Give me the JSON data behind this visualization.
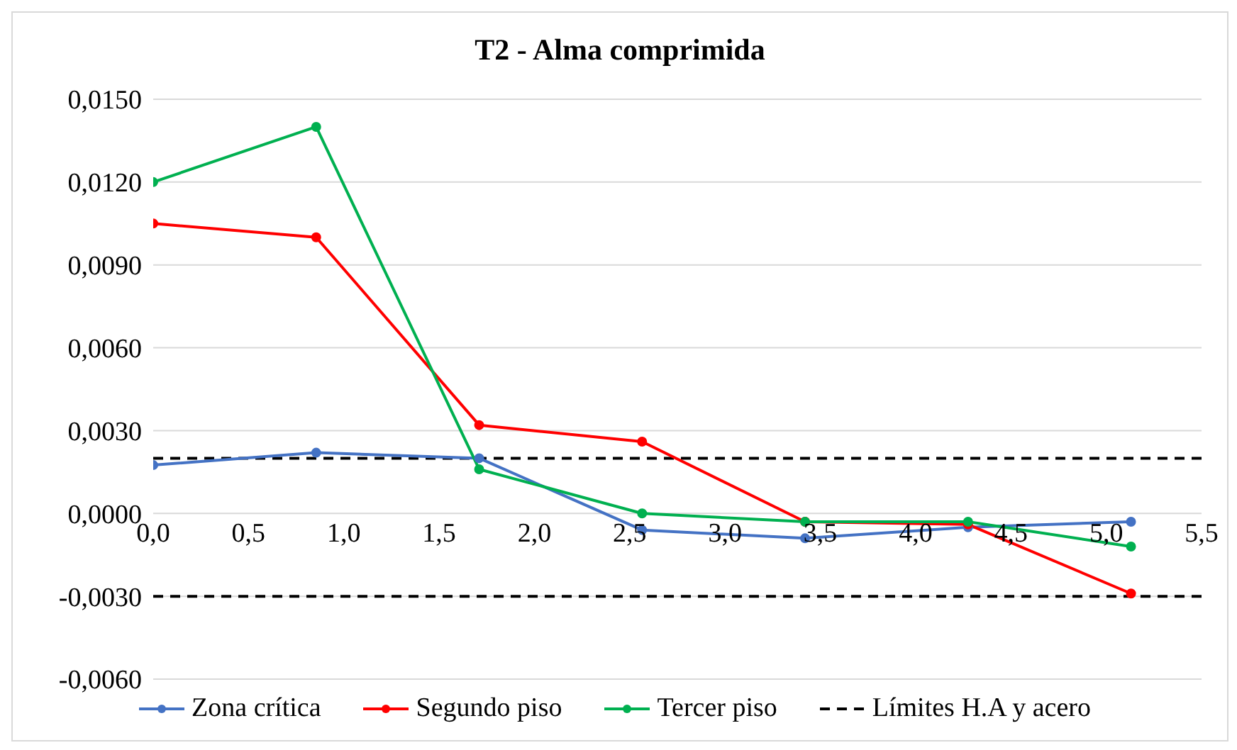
{
  "chart_data": {
    "type": "line",
    "title": "T2 - Alma comprimida",
    "x": [
      0,
      0.855,
      1.71,
      2.565,
      3.42,
      4.275,
      5.13
    ],
    "series": [
      {
        "name": "Zona crítica",
        "color": "#4472c4",
        "values": [
          0.00175,
          0.0022,
          0.002,
          -0.0006,
          -0.0009,
          -0.0005,
          -0.0003
        ]
      },
      {
        "name": "Segundo piso",
        "color": "#ff0000",
        "values": [
          0.0105,
          0.01,
          0.0032,
          0.0026,
          -0.0003,
          -0.0004,
          -0.0029
        ]
      },
      {
        "name": "Tercer piso",
        "color": "#00b050",
        "values": [
          0.012,
          0.014,
          0.0016,
          0.0,
          -0.0003,
          -0.0003,
          -0.0012
        ]
      }
    ],
    "ref_lines": [
      {
        "axis": "y",
        "value": 0.002,
        "label": "Límites H.A y acero",
        "color": "#000000",
        "line_style": "dashed"
      },
      {
        "axis": "y",
        "value": -0.003,
        "label": null,
        "color": "#000000",
        "line_style": "dashed"
      }
    ],
    "xlim": [
      0,
      5.5
    ],
    "xticks": [
      {
        "value": 0,
        "label": "0,0"
      },
      {
        "value": 0.5,
        "label": "0,5"
      },
      {
        "value": 1,
        "label": "1,0"
      },
      {
        "value": 1.5,
        "label": "1,5"
      },
      {
        "value": 2,
        "label": "2,0"
      },
      {
        "value": 2.5,
        "label": "2,5"
      },
      {
        "value": 3,
        "label": "3,0"
      },
      {
        "value": 3.5,
        "label": "3,5"
      },
      {
        "value": 4,
        "label": "4,0"
      },
      {
        "value": 4.5,
        "label": "4,5"
      },
      {
        "value": 5,
        "label": "5,0"
      },
      {
        "value": 5.5,
        "label": "5,5"
      }
    ],
    "ylim": [
      -0.006,
      0.015
    ],
    "yticks": [
      {
        "value": -0.006,
        "label": "-0,0060"
      },
      {
        "value": -0.003,
        "label": "-0,0030"
      },
      {
        "value": 0,
        "label": "0,0000"
      },
      {
        "value": 0.003,
        "label": "0,0030"
      },
      {
        "value": 0.006,
        "label": "0,0060"
      },
      {
        "value": 0.009,
        "label": "0,0090"
      },
      {
        "value": 0.012,
        "label": "0,0120"
      },
      {
        "value": 0.015,
        "label": "0,0150"
      }
    ],
    "grid": "y",
    "legend": "bottom",
    "marker": "circle",
    "line_style": "solid"
  }
}
